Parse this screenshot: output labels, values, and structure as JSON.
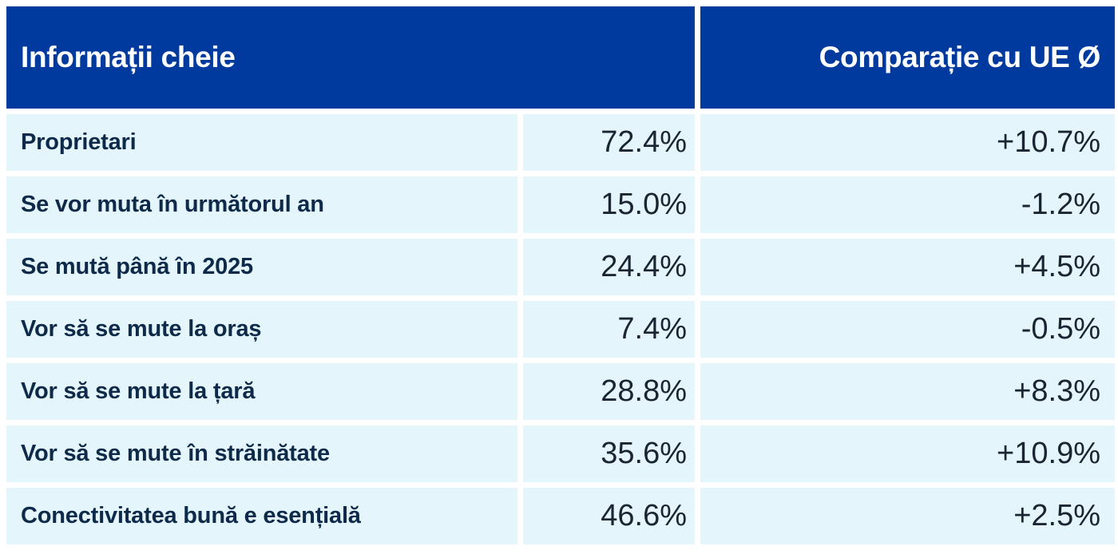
{
  "header": {
    "left_title": "Informații cheie",
    "right_title": "Comparație cu UE Ø"
  },
  "rows": [
    {
      "label": "Proprietari",
      "value": "72.4%",
      "compare": "+10.7%"
    },
    {
      "label": "Se vor muta în următorul an",
      "value": "15.0%",
      "compare": "-1.2%"
    },
    {
      "label": "Se mută până în 2025",
      "value": "24.4%",
      "compare": "+4.5%"
    },
    {
      "label": "Vor să se mute la oraș",
      "value": "7.4%",
      "compare": "-0.5%"
    },
    {
      "label": "Vor să se mute la țară",
      "value": "28.8%",
      "compare": "+8.3%"
    },
    {
      "label": "Vor să se mute în străinătate",
      "value": "35.6%",
      "compare": "+10.9%"
    },
    {
      "label": "Conectivitatea bună e esențială",
      "value": "46.6%",
      "compare": "+2.5%"
    }
  ],
  "colors": {
    "header_bg": "#003a9e",
    "row_bg": "#e4f6fc",
    "label_text": "#0e2a4a"
  }
}
